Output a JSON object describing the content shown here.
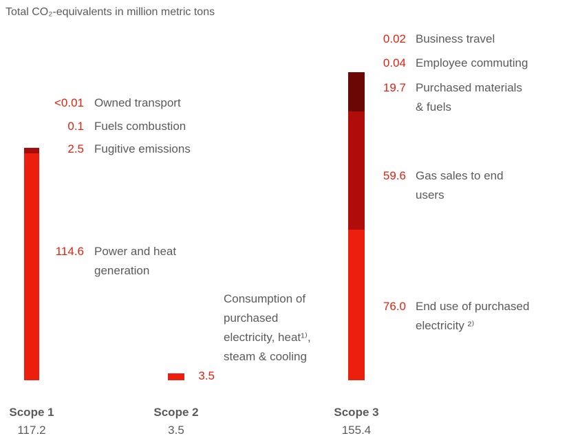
{
  "chart_data": {
    "type": "stacked-bar",
    "title": "Total CO₂-equivalents in million metric tons",
    "bars": [
      {
        "label": "Scope 1",
        "total": 117.2,
        "segments": [
          {
            "name": "Power and heat generation",
            "value": 114.6,
            "color": "#ec1f0f"
          },
          {
            "name": "Fugitive emissions",
            "value": 2.5,
            "color": "#a50d0a"
          },
          {
            "name": "Fuels combustion",
            "value": 0.1,
            "color": "#a50d0a"
          },
          {
            "name": "Owned transport",
            "value": 0.005,
            "value_label": "<0.01",
            "color": "#6e0806"
          }
        ]
      },
      {
        "label": "Scope 2",
        "total": 3.5,
        "segments": [
          {
            "name": "Consumption of purchased electricity, heat¹⁾, steam & cooling",
            "value": 3.5,
            "color": "#ec1f0f"
          }
        ]
      },
      {
        "label": "Scope 3",
        "total": 155.4,
        "segments": [
          {
            "name": "End use of purchased electricity ²⁾",
            "value": 76.0,
            "value_label": "76.0",
            "color": "#ec1f0f"
          },
          {
            "name": "Gas sales to end users",
            "value": 59.6,
            "color": "#b00d0a"
          },
          {
            "name": "Purchased materials & fuels",
            "value": 19.7,
            "color": "#6b0806"
          },
          {
            "name": "Employee commuting",
            "value": 0.04,
            "color": "#6b0806"
          },
          {
            "name": "Business travel",
            "value": 0.02,
            "color": "#6b0806"
          }
        ]
      }
    ]
  }
}
